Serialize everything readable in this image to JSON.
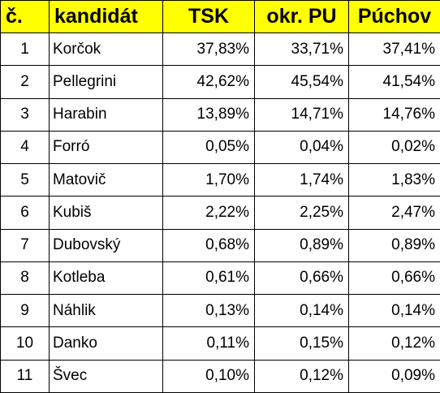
{
  "header": {
    "col_number": "č.",
    "col_candidate": "kandidát",
    "col_tsk": "TSK",
    "col_okr": "okr. PU",
    "col_puchov": "Púchov"
  },
  "highlight_color": "#ffff00",
  "rows": [
    {
      "num": "1",
      "name": "Korčok",
      "tsk": "37,83%",
      "okr": "33,71%",
      "puchov": "37,41%"
    },
    {
      "num": "2",
      "name": "Pellegrini",
      "tsk": "42,62%",
      "okr": "45,54%",
      "puchov": "41,54%"
    },
    {
      "num": "3",
      "name": "Harabin",
      "tsk": "13,89%",
      "okr": "14,71%",
      "puchov": "14,76%"
    },
    {
      "num": "4",
      "name": "Forró",
      "tsk": "0,05%",
      "okr": "0,04%",
      "puchov": "0,02%"
    },
    {
      "num": "5",
      "name": "Matovič",
      "tsk": "1,70%",
      "okr": "1,74%",
      "puchov": "1,83%"
    },
    {
      "num": "6",
      "name": "Kubiš",
      "tsk": "2,22%",
      "okr": "2,25%",
      "puchov": "2,47%"
    },
    {
      "num": "7",
      "name": "Dubovský",
      "tsk": "0,68%",
      "okr": "0,89%",
      "puchov": "0,89%"
    },
    {
      "num": "8",
      "name": "Kotleba",
      "tsk": "0,61%",
      "okr": "0,66%",
      "puchov": "0,66%"
    },
    {
      "num": "9",
      "name": "Náhlik",
      "tsk": "0,13%",
      "okr": "0,14%",
      "puchov": "0,14%"
    },
    {
      "num": "10",
      "name": "Danko",
      "tsk": "0,11%",
      "okr": "0,15%",
      "puchov": "0,12%"
    },
    {
      "num": "11",
      "name": "Švec",
      "tsk": "0,10%",
      "okr": "0,12%",
      "puchov": "0,09%"
    }
  ]
}
